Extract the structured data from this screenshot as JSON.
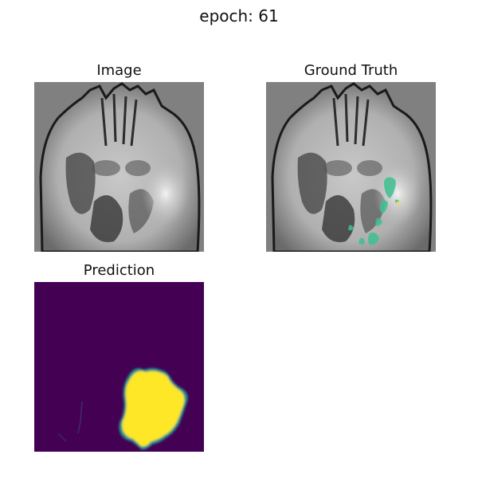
{
  "figure": {
    "title": "epoch: 61"
  },
  "panels": {
    "image": {
      "title": "Image"
    },
    "ground_truth": {
      "title": "Ground Truth"
    },
    "prediction": {
      "title": "Prediction"
    }
  },
  "colors": {
    "background": "#808080",
    "tissue_light": "#d0d0d0",
    "tissue_dark": "#2a2a2a",
    "mask_overlay": "#3fc08f",
    "prediction_background": "#440154",
    "prediction_positive": "#fde725"
  }
}
